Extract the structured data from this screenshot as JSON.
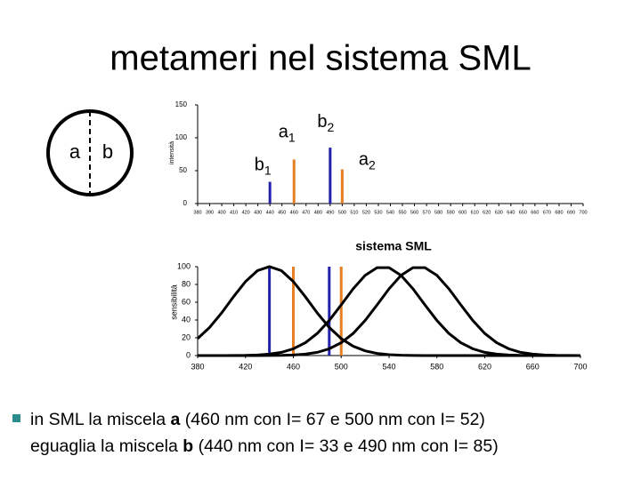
{
  "title": "metameri nel sistema SML",
  "diagram": {
    "left": "a",
    "right": "b"
  },
  "chart_data": [
    {
      "type": "bar",
      "ylabel": "intensità",
      "x": [
        440,
        460,
        490,
        500
      ],
      "values": [
        33,
        67,
        85,
        52
      ],
      "colors": [
        "#2222aa",
        "#e67e22",
        "#2222aa",
        "#e67e22"
      ],
      "point_labels": [
        {
          "main": "b",
          "sub": "1"
        },
        {
          "main": "a",
          "sub": "1"
        },
        {
          "main": "b",
          "sub": "2"
        },
        {
          "main": "a",
          "sub": "2"
        }
      ],
      "xlim": [
        380,
        700
      ],
      "ylim": [
        0,
        150
      ],
      "yticks": [
        0,
        50,
        100,
        150
      ],
      "xticks": [
        380,
        390,
        400,
        410,
        420,
        430,
        440,
        450,
        460,
        470,
        480,
        490,
        500,
        510,
        520,
        530,
        540,
        550,
        560,
        570,
        580,
        590,
        600,
        610,
        620,
        630,
        640,
        650,
        660,
        670,
        680,
        690,
        700
      ]
    },
    {
      "type": "line",
      "title": "sistema SML",
      "ylabel": "sensibilità",
      "x": [
        380,
        390,
        400,
        410,
        420,
        430,
        440,
        450,
        460,
        470,
        480,
        490,
        500,
        510,
        520,
        530,
        540,
        550,
        560,
        570,
        580,
        590,
        600,
        610,
        620,
        630,
        640,
        650,
        660,
        670,
        680,
        690,
        700
      ],
      "series": [
        {
          "color": "#000000",
          "values": [
            19.1,
            31.7,
            47.9,
            66.2,
            83.2,
            95.5,
            100,
            95.5,
            83.2,
            66.2,
            47.9,
            31.7,
            19.1,
            10.5,
            5.3,
            2.4,
            1.0,
            0.4,
            0.1,
            0,
            0,
            0,
            0,
            0,
            0,
            0,
            0,
            0,
            0,
            0,
            0,
            0,
            0
          ]
        },
        {
          "color": "#000000",
          "values": [
            0,
            0,
            0,
            0.1,
            0.2,
            0.6,
            1.6,
            3.6,
            7.6,
            14.4,
            24.9,
            39.5,
            57.0,
            75.1,
            90.2,
            98.9,
            98.9,
            90.2,
            75.1,
            57.0,
            39.5,
            24.9,
            14.4,
            7.6,
            3.6,
            1.6,
            0.6,
            0.2,
            0.1,
            0,
            0,
            0,
            0
          ]
        },
        {
          "color": "#000000",
          "values": [
            0,
            0,
            0,
            0,
            0,
            0,
            0.1,
            0.2,
            0.6,
            1.6,
            3.6,
            7.6,
            14.4,
            24.9,
            39.5,
            57.0,
            75.1,
            90.2,
            98.9,
            98.9,
            90.2,
            75.1,
            57.0,
            39.5,
            24.9,
            14.4,
            7.6,
            3.6,
            1.6,
            0.6,
            0.2,
            0.1,
            0
          ]
        }
      ],
      "vlines": [
        {
          "x": 440,
          "color": "#2222aa"
        },
        {
          "x": 460,
          "color": "#e67e22"
        },
        {
          "x": 490,
          "color": "#2222aa"
        },
        {
          "x": 500,
          "color": "#e67e22"
        }
      ],
      "xlim": [
        380,
        700
      ],
      "ylim": [
        0,
        100
      ],
      "xticks": [
        380,
        420,
        460,
        500,
        540,
        580,
        620,
        660,
        700
      ],
      "yticks": [
        0,
        20,
        40,
        60,
        80,
        100
      ]
    }
  ],
  "bullet": {
    "lines": [
      [
        {
          "text": "in SML la miscela "
        },
        {
          "text": "a",
          "bold": true
        },
        {
          "text": " (460 nm con I= 67 e 500 nm con I= 52)"
        }
      ],
      [
        {
          "text": "eguaglia la miscela "
        },
        {
          "text": "b",
          "bold": true
        },
        {
          "text": " (440 nm con I= 33 e 490 nm con I= 85)"
        }
      ]
    ]
  }
}
